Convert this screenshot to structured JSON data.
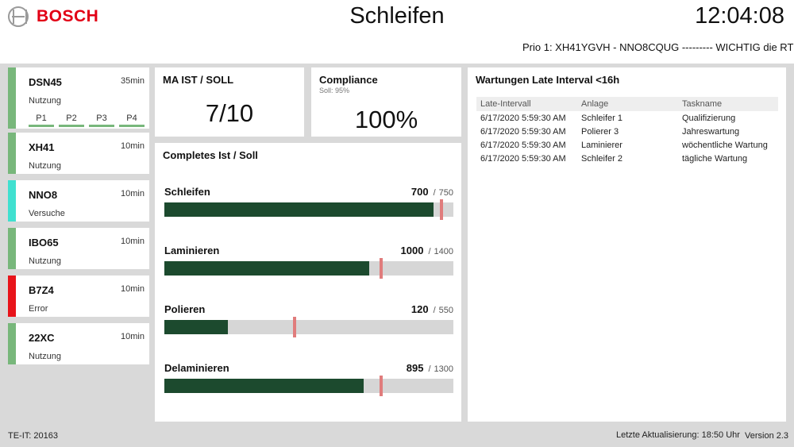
{
  "header": {
    "brand": "BOSCH",
    "title": "Schleifen",
    "clock": "12:04:08",
    "ticker": "Prio 1: XH41YGVH - NNO8CQUG ---------  WICHTIG die RT"
  },
  "colors": {
    "brand_red": "#e20015",
    "status_ok": "#78b77b",
    "status_test": "#40e0d0",
    "status_error": "#e8141b",
    "progress_fill": "#1c4a2e",
    "target_marker": "#e07c7c"
  },
  "stations": [
    {
      "name": "DSN45",
      "time": "35min",
      "status": "Nutzung",
      "color": "#78b77b",
      "prios": [
        "P1",
        "P2",
        "P3",
        "P4"
      ]
    },
    {
      "name": "XH41",
      "time": "10min",
      "status": "Nutzung",
      "color": "#78b77b"
    },
    {
      "name": "NNO8",
      "time": "10min",
      "status": "Versuche",
      "color": "#40e0d0"
    },
    {
      "name": "IBO65",
      "time": "10min",
      "status": "Nutzung",
      "color": "#78b77b"
    },
    {
      "name": "B7Z4",
      "time": "10min",
      "status": "Error",
      "color": "#e8141b"
    },
    {
      "name": "22XC",
      "time": "10min",
      "status": "Nutzung",
      "color": "#78b77b"
    }
  ],
  "ma_panel": {
    "title": "MA IST / SOLL",
    "value": "7/10"
  },
  "compliance": {
    "title": "Compliance",
    "subtitle": "Soll: 95%",
    "value": "100%"
  },
  "completes": {
    "title": "Completes Ist / Soll",
    "rows": [
      {
        "label": "Schleifen",
        "ist": 700,
        "soll": 750,
        "fill_fraction": 0.93,
        "target_fraction": 0.96
      },
      {
        "label": "Laminieren",
        "ist": 1000,
        "soll": 1400,
        "fill_fraction": 0.71,
        "target_fraction": 0.75
      },
      {
        "label": "Polieren",
        "ist": 120,
        "soll": 550,
        "fill_fraction": 0.22,
        "target_fraction": 0.45
      },
      {
        "label": "Delaminieren",
        "ist": 895,
        "soll": 1300,
        "fill_fraction": 0.69,
        "target_fraction": 0.75
      }
    ]
  },
  "wartungen": {
    "title": "Wartungen Late Interval <16h",
    "columns": [
      "Late-Intervall",
      "Anlage",
      "Taskname"
    ],
    "rows": [
      [
        "6/17/2020 5:59:30 AM",
        "Schleifer 1",
        "Qualifizierung"
      ],
      [
        "6/17/2020 5:59:30 AM",
        "Polierer 3",
        "Jahreswartung"
      ],
      [
        "6/17/2020 5:59:30 AM",
        "Laminierer",
        "wöchentliche Wartung"
      ],
      [
        "6/17/2020 5:59:30 AM",
        "Schleifer 2",
        "tägliche Wartung"
      ]
    ]
  },
  "footer": {
    "left": "TE-IT: 20163",
    "update": "Letzte Aktualisierung: 18:50 Uhr",
    "version": "Version 2.3"
  }
}
